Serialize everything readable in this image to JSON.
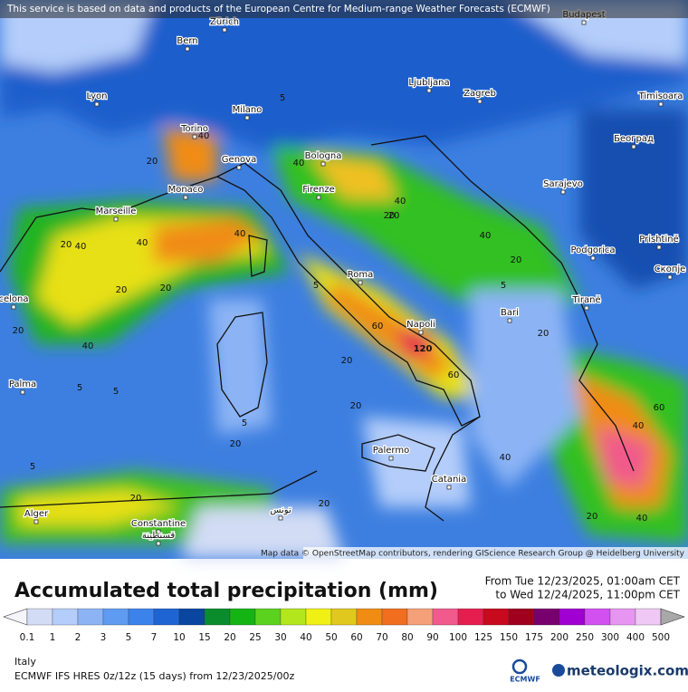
{
  "banner": "This service is based on data and products of the European Centre for Medium-range Weather Forecasts (ECMWF)",
  "attribution": "Map data © OpenStreetMap contributors, rendering GIScience Research Group @ Heidelberg University",
  "cities": [
    "Zürich",
    "Bern",
    "Budapest",
    "Lyon",
    "Milano",
    "Ljubljana",
    "Zagreb",
    "Timisoara",
    "Torino",
    "Genova",
    "Bologna",
    "Београд",
    "Monaco",
    "Firenze",
    "Sarajevo",
    "Marseille",
    "Podgorica",
    "Prishtinë",
    "Roma",
    "Скопје",
    "Tiranë",
    "celona",
    "Bari",
    "Napoli",
    "Palma",
    "Palermo",
    "Catania",
    "Alger",
    "Constantine",
    "قسنطينة",
    "تونس"
  ],
  "contour_labels": [
    40,
    20,
    5,
    40,
    40,
    20,
    40,
    20,
    40,
    60,
    20,
    40,
    20,
    20,
    5,
    40,
    5,
    20,
    60,
    20,
    5,
    20,
    40,
    60,
    40,
    20,
    5,
    5,
    20,
    20,
    20,
    40,
    120,
    20,
    5,
    20,
    40
  ],
  "legend": {
    "title": "Accumulated total precipitation (mm)",
    "period": [
      "From Tue 12/23/2025, 01:00am CET",
      "to Wed 12/24/2025, 11:00pm CET"
    ],
    "levels": [
      0.1,
      1,
      2,
      3,
      5,
      7,
      10,
      15,
      20,
      25,
      30,
      40,
      50,
      60,
      70,
      80,
      90,
      100,
      125,
      150,
      175,
      200,
      250,
      300,
      400,
      500
    ],
    "colors": [
      "#f4f4fa",
      "#d2dcf5",
      "#b4cdfa",
      "#8cb4f5",
      "#5f9bf0",
      "#3c82eb",
      "#1e64d2",
      "#0a46a0",
      "#0a8c2d",
      "#14b414",
      "#5ad21e",
      "#b4e61e",
      "#f0f014",
      "#e1c81e",
      "#f08c14",
      "#f06e1e",
      "#f5a078",
      "#f05a8c",
      "#e61e50",
      "#c80a1e",
      "#a0001e",
      "#78006e",
      "#a000d2",
      "#d250f0",
      "#e696f0",
      "#f0c8f5",
      "#a8a8a8"
    ]
  },
  "footer": {
    "region": "Italy",
    "model": "ECMWF IFS HRES 0z/12z (15 days) from  12/23/2025/00z",
    "logo_ecmwf": "ECMWF",
    "logo_site": "meteologix.com"
  }
}
